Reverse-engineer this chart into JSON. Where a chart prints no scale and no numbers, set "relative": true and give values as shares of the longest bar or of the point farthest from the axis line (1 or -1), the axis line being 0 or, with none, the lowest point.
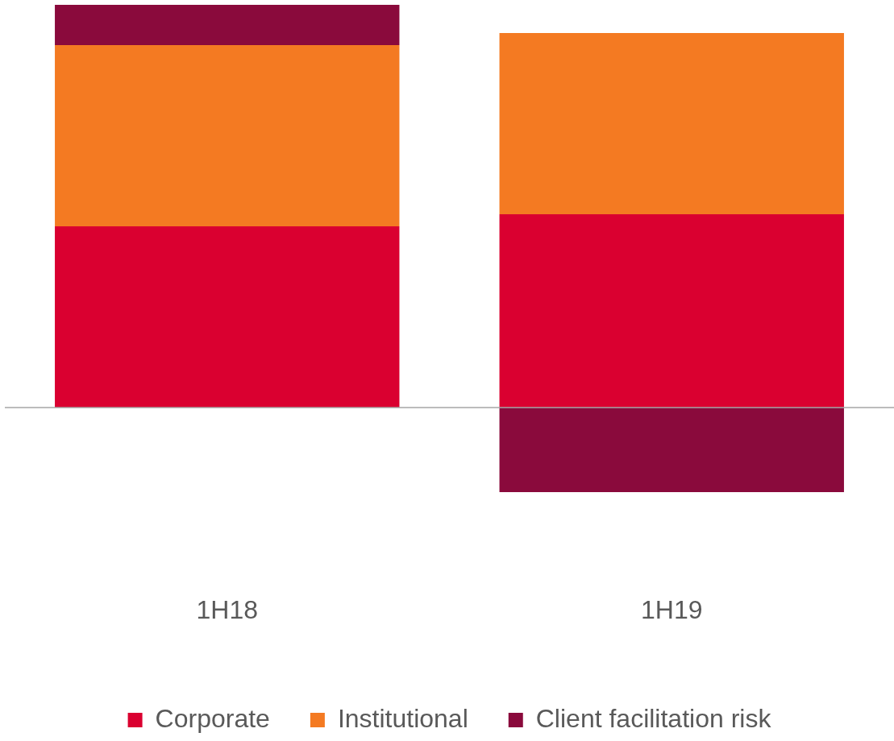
{
  "chart_data": {
    "type": "bar",
    "stacked": true,
    "relative": true,
    "categories": [
      "1H18",
      "1H19"
    ],
    "legend": "bottom",
    "grid": false,
    "series": [
      {
        "name": "Corporate",
        "color": "#da0030",
        "values": [
          0.45,
          0.48
        ]
      },
      {
        "name": "Institutional",
        "color": "#f47a22",
        "values": [
          0.45,
          0.45
        ]
      },
      {
        "name": "Client facilitation risk",
        "color": "#8a0a3c",
        "values": [
          0.1,
          -0.21
        ]
      }
    ]
  }
}
